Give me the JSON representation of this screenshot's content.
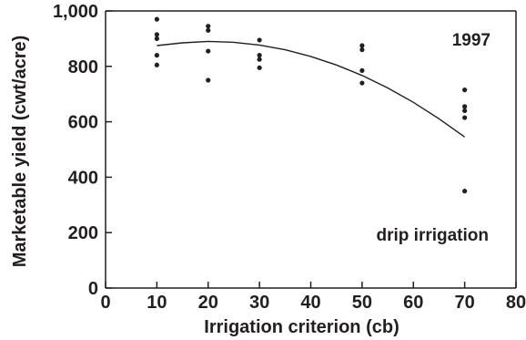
{
  "chart_data": {
    "type": "scatter",
    "title": "",
    "xlabel": "Irrigation criterion (cb)",
    "ylabel": "Marketable yield (cwt/acre)",
    "xlim": [
      0,
      80
    ],
    "ylim": [
      0,
      1000
    ],
    "x_ticks": [
      0,
      10,
      20,
      30,
      40,
      50,
      60,
      70,
      80
    ],
    "y_ticks": [
      0,
      200,
      400,
      600,
      800,
      1000
    ],
    "x_tick_labels": [
      "0",
      "10",
      "20",
      "30",
      "40",
      "50",
      "60",
      "70",
      "80"
    ],
    "y_tick_labels": [
      "0",
      "200",
      "400",
      "600",
      "800",
      "1,000"
    ],
    "grid": false,
    "annotations": [
      {
        "text": "1997",
        "position": "top-right"
      },
      {
        "text": "drip irrigation",
        "position": "bottom-right"
      }
    ],
    "series": [
      {
        "type": "scatter",
        "points": [
          {
            "x": 10,
            "y": 970
          },
          {
            "x": 10,
            "y": 915
          },
          {
            "x": 10,
            "y": 900
          },
          {
            "x": 10,
            "y": 840
          },
          {
            "x": 10,
            "y": 805
          },
          {
            "x": 20,
            "y": 945
          },
          {
            "x": 20,
            "y": 930
          },
          {
            "x": 20,
            "y": 855
          },
          {
            "x": 20,
            "y": 750
          },
          {
            "x": 30,
            "y": 895
          },
          {
            "x": 30,
            "y": 840
          },
          {
            "x": 30,
            "y": 825
          },
          {
            "x": 30,
            "y": 795
          },
          {
            "x": 50,
            "y": 875
          },
          {
            "x": 50,
            "y": 860
          },
          {
            "x": 50,
            "y": 785
          },
          {
            "x": 50,
            "y": 740
          },
          {
            "x": 70,
            "y": 715
          },
          {
            "x": 70,
            "y": 655
          },
          {
            "x": 70,
            "y": 640
          },
          {
            "x": 70,
            "y": 615
          },
          {
            "x": 70,
            "y": 350
          }
        ]
      },
      {
        "type": "line",
        "x": [
          10,
          15,
          20,
          25,
          30,
          35,
          40,
          45,
          50,
          55,
          60,
          65,
          70
        ],
        "y": [
          875,
          885,
          890,
          887,
          877,
          860,
          836,
          805,
          767,
          722,
          670,
          611,
          545
        ]
      }
    ],
    "colors": {
      "ink": "#231f20",
      "background": "#ffffff"
    }
  }
}
